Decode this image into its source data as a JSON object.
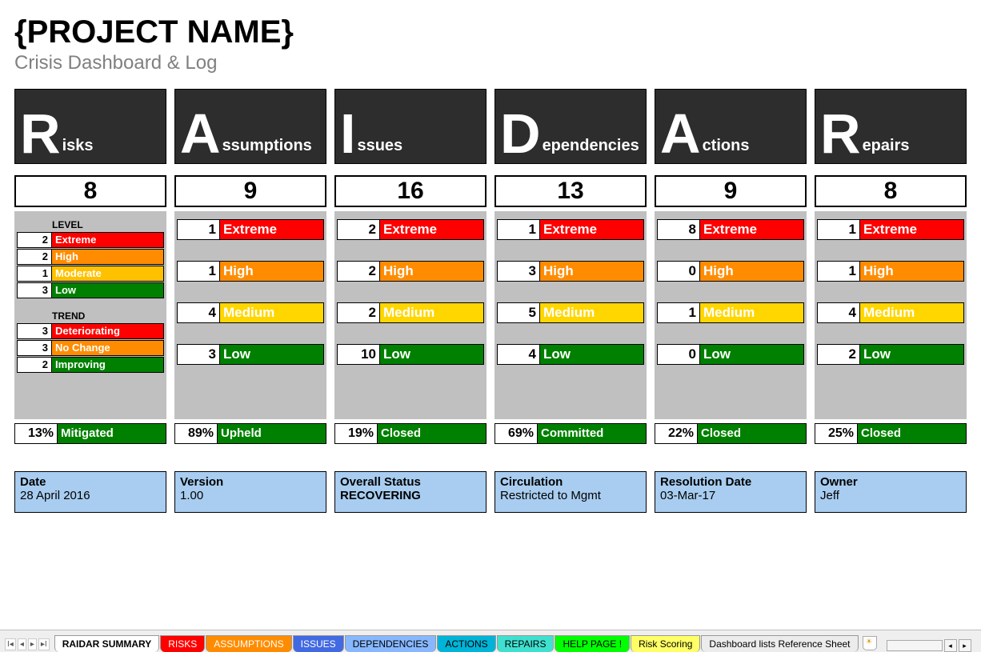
{
  "title": "{PROJECT NAME}",
  "subtitle": "Crisis Dashboard & Log",
  "colors": {
    "extreme": "#ff0000",
    "high": "#ff8c00",
    "moderate": "#ffc000",
    "medium": "#ffd600",
    "low": "#008000",
    "green": "#008000",
    "headerBg": "#2d2d2d",
    "grayBody": "#c0c0c0",
    "metaBg": "#a8cdf0"
  },
  "columns": [
    {
      "letter": "R",
      "rest": "isks",
      "total": "8",
      "risksLayout": true,
      "levelHeader": "LEVEL",
      "levels": [
        {
          "n": "2",
          "label": "Extreme",
          "colorKey": "extreme"
        },
        {
          "n": "2",
          "label": "High",
          "colorKey": "high"
        },
        {
          "n": "1",
          "label": "Moderate",
          "colorKey": "moderate"
        },
        {
          "n": "3",
          "label": "Low",
          "colorKey": "low"
        }
      ],
      "trendHeader": "TREND",
      "trends": [
        {
          "n": "3",
          "label": "Deteriorating",
          "colorKey": "extreme"
        },
        {
          "n": "3",
          "label": "No Change",
          "colorKey": "high"
        },
        {
          "n": "2",
          "label": "Improving",
          "colorKey": "green"
        }
      ],
      "summary": {
        "pct": "13%",
        "label": "Mitigated"
      }
    },
    {
      "letter": "A",
      "rest": "ssumptions",
      "total": "9",
      "rows": [
        {
          "n": "1",
          "label": "Extreme",
          "colorKey": "extreme"
        },
        {
          "n": "1",
          "label": "High",
          "colorKey": "high"
        },
        {
          "n": "4",
          "label": "Medium",
          "colorKey": "medium"
        },
        {
          "n": "3",
          "label": "Low",
          "colorKey": "low"
        }
      ],
      "summary": {
        "pct": "89%",
        "label": "Upheld"
      }
    },
    {
      "letter": "I",
      "rest": "ssues",
      "total": "16",
      "rows": [
        {
          "n": "2",
          "label": "Extreme",
          "colorKey": "extreme"
        },
        {
          "n": "2",
          "label": "High",
          "colorKey": "high"
        },
        {
          "n": "2",
          "label": "Medium",
          "colorKey": "medium"
        },
        {
          "n": "10",
          "label": "Low",
          "colorKey": "low"
        }
      ],
      "summary": {
        "pct": "19%",
        "label": "Closed"
      }
    },
    {
      "letter": "D",
      "rest": "ependencies",
      "total": "13",
      "rows": [
        {
          "n": "1",
          "label": "Extreme",
          "colorKey": "extreme"
        },
        {
          "n": "3",
          "label": "High",
          "colorKey": "high"
        },
        {
          "n": "5",
          "label": "Medium",
          "colorKey": "medium"
        },
        {
          "n": "4",
          "label": "Low",
          "colorKey": "low"
        }
      ],
      "summary": {
        "pct": "69%",
        "label": "Committed"
      }
    },
    {
      "letter": "A",
      "rest": "ctions",
      "total": "9",
      "rows": [
        {
          "n": "8",
          "label": "Extreme",
          "colorKey": "extreme"
        },
        {
          "n": "0",
          "label": "High",
          "colorKey": "high"
        },
        {
          "n": "1",
          "label": "Medium",
          "colorKey": "medium"
        },
        {
          "n": "0",
          "label": "Low",
          "colorKey": "low"
        }
      ],
      "summary": {
        "pct": "22%",
        "label": "Closed"
      }
    },
    {
      "letter": "R",
      "rest": "epairs",
      "total": "8",
      "rows": [
        {
          "n": "1",
          "label": "Extreme",
          "colorKey": "extreme"
        },
        {
          "n": "1",
          "label": "High",
          "colorKey": "high"
        },
        {
          "n": "4",
          "label": "Medium",
          "colorKey": "medium"
        },
        {
          "n": "2",
          "label": "Low",
          "colorKey": "low"
        }
      ],
      "summary": {
        "pct": "25%",
        "label": "Closed"
      }
    }
  ],
  "meta": [
    {
      "label": "Date",
      "value": "28 April 2016",
      "bold": false
    },
    {
      "label": "Version",
      "value": "1.00",
      "bold": false
    },
    {
      "label": "Overall Status",
      "value": "RECOVERING",
      "bold": true
    },
    {
      "label": "Circulation",
      "value": "Restricted to Mgmt",
      "bold": false
    },
    {
      "label": "Resolution Date",
      "value": "03-Mar-17",
      "bold": false
    },
    {
      "label": "Owner",
      "value": "Jeff",
      "bold": false
    }
  ],
  "tabs": [
    {
      "label": "RAIDAR SUMMARY",
      "active": true,
      "color": "#ffffff"
    },
    {
      "label": "RISKS",
      "color": "#ff0000"
    },
    {
      "label": "ASSUMPTIONS",
      "color": "#ff8c00"
    },
    {
      "label": "ISSUES",
      "color": "#4169e1"
    },
    {
      "label": "DEPENDENCIES",
      "color": "#87b8ff"
    },
    {
      "label": "ACTIONS",
      "color": "#00b4d8"
    },
    {
      "label": "REPAIRS",
      "color": "#40e0d0"
    },
    {
      "label": "HELP PAGE !",
      "color": "#00ff00"
    },
    {
      "label": "Risk Scoring",
      "color": "#ffff66"
    },
    {
      "label": "Dashboard lists Reference Sheet",
      "color": "#ececec"
    }
  ]
}
